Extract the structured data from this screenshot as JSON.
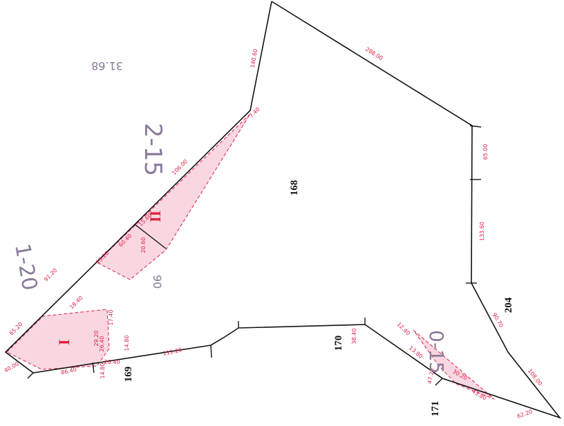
{
  "map": {
    "parcels": [
      {
        "label": "168"
      },
      {
        "label": "169"
      },
      {
        "label": "170"
      },
      {
        "label": "171"
      },
      {
        "label": "204"
      }
    ],
    "dimensions": [
      "140.60",
      "288.00",
      "65.00",
      "133.60",
      "90.70",
      "108.00",
      "62.20",
      "43.80",
      "30.20",
      "47.20",
      "13.80",
      "38.40",
      "12.40",
      "111.20",
      "86.40",
      "40.00",
      "65.20",
      "91.20",
      "13.20",
      "60.40",
      "15.60",
      "106.00",
      "7.40",
      "26.40",
      "26.40",
      "14.80",
      "14.80",
      "29.20",
      "17.40",
      "18.40",
      "20.60"
    ],
    "annotations": [
      "2-15",
      "1-20",
      "0-15",
      "31.68",
      "90",
      "II",
      "I"
    ]
  }
}
